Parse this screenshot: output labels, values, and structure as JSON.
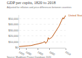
{
  "chart_data": {
    "type": "line",
    "title": "GDP per capita, 1820 to 2018",
    "subtitle": "Adjusted for inflation and price differences between countries",
    "source": "Source: Maddison Project Database 2020",
    "x": [
      1820,
      1830,
      1840,
      1850,
      1860,
      1870,
      1880,
      1890,
      1900,
      1910,
      1913,
      1920,
      1929,
      1933,
      1940,
      1944,
      1947,
      1950,
      1960,
      1970,
      1980,
      1990,
      2000,
      2007,
      2009,
      2010,
      2018
    ],
    "series": [
      {
        "name": "United States",
        "color": "#be5915",
        "values": [
          2080,
          2204,
          2567,
          2825,
          3425,
          3736,
          4867,
          5184,
          6252,
          7529,
          8101,
          8573,
          10543,
          7625,
          10730,
          17440,
          14900,
          15240,
          18057,
          23958,
          29611,
          36982,
          45886,
          51500,
          49500,
          49267,
          55335
        ]
      }
    ],
    "xlim": [
      1820,
      2018
    ],
    "xticks": [
      1820,
      1850,
      1900,
      1950,
      2018
    ],
    "ylim": [
      0,
      56000
    ],
    "yticks": [
      {
        "value": 0,
        "label": "$0"
      },
      {
        "value": 10000,
        "label": "$10,000"
      },
      {
        "value": 20000,
        "label": "$20,000"
      },
      {
        "value": 30000,
        "label": "$30,000"
      },
      {
        "value": 40000,
        "label": "$40,000"
      },
      {
        "value": 50000,
        "label": "$50,000"
      }
    ],
    "grid": true
  }
}
